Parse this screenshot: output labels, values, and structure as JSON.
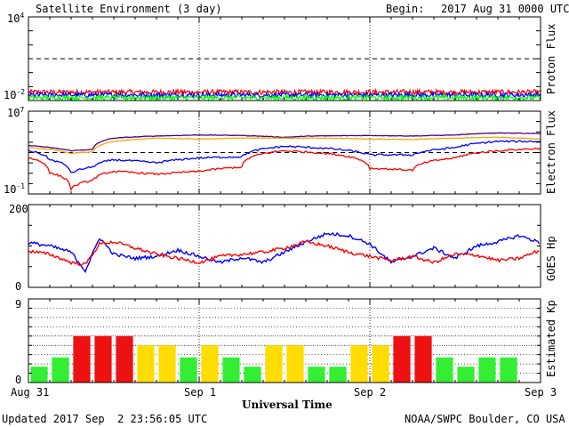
{
  "header": {
    "title": "Satellite Environment (3 day)",
    "begin_label": "Begin:",
    "begin_date": "2017 Aug 31 0000 UTC"
  },
  "footer": {
    "updated": "Updated 2017 Sep  2 23:56:05 UTC",
    "credit": "NOAA/SWPC Boulder, CO USA"
  },
  "x_axis": {
    "title": "Universal Time",
    "ticks": [
      "Aug 31",
      "Sep 1",
      "Sep 2",
      "Sep 3"
    ]
  },
  "colors": {
    "red": "#ff0000",
    "blue": "#0000ff",
    "green": "#00ff00",
    "purple": "#4b0082",
    "orange": "#ffa500",
    "kp_green": "#33ee33",
    "kp_yellow": "#ffdd00",
    "kp_red": "#ee1111"
  },
  "chart_data": [
    {
      "type": "line",
      "ylabel": "Proton Flux",
      "y_scale": "log",
      "ylim": [
        0.01,
        10000
      ],
      "y_ticks": [
        {
          "base": "10",
          "exp": "4"
        },
        {
          "base": "10",
          "exp": "-2"
        }
      ],
      "x_range_hours": [
        0,
        72
      ],
      "threshold": 10,
      "series": [
        {
          "color": "red",
          "level": 0.04
        },
        {
          "color": "blue",
          "level": 0.025
        },
        {
          "color": "green",
          "level": 0.016
        }
      ]
    },
    {
      "type": "line",
      "ylabel": "Electron Flux",
      "y_scale": "log",
      "ylim": [
        0.1,
        10000000
      ],
      "y_ticks": [
        {
          "base": "10",
          "exp": "7"
        },
        {
          "base": "10",
          "exp": "-1"
        }
      ],
      "x_range_hours": [
        0,
        72
      ],
      "threshold": 1000,
      "series": [
        {
          "color": "purple",
          "points": [
            [
              0,
              5000
            ],
            [
              3,
              3000
            ],
            [
              6,
              1500
            ],
            [
              9,
              2000
            ],
            [
              12,
              25000
            ],
            [
              18,
              40000
            ],
            [
              24,
              50000
            ],
            [
              30,
              45000
            ],
            [
              36,
              30000
            ],
            [
              40,
              40000
            ],
            [
              48,
              45000
            ],
            [
              54,
              40000
            ],
            [
              60,
              50000
            ],
            [
              66,
              80000
            ],
            [
              72,
              70000
            ]
          ]
        },
        {
          "color": "orange",
          "points": [
            [
              0,
              3000
            ],
            [
              3,
              2000
            ],
            [
              6,
              800
            ],
            [
              9,
              1200
            ],
            [
              12,
              12000
            ],
            [
              18,
              25000
            ],
            [
              24,
              20000
            ],
            [
              30,
              25000
            ],
            [
              36,
              25000
            ],
            [
              42,
              25000
            ],
            [
              48,
              20000
            ],
            [
              54,
              18000
            ],
            [
              60,
              25000
            ],
            [
              66,
              30000
            ],
            [
              72,
              20000
            ]
          ]
        },
        {
          "color": "blue",
          "points": [
            [
              0,
              1500
            ],
            [
              3,
              200
            ],
            [
              6,
              10
            ],
            [
              9,
              40
            ],
            [
              12,
              200
            ],
            [
              18,
              100
            ],
            [
              24,
              300
            ],
            [
              30,
              400
            ],
            [
              36,
              4000
            ],
            [
              42,
              2500
            ],
            [
              48,
              600
            ],
            [
              54,
              600
            ],
            [
              60,
              3000
            ],
            [
              66,
              12000
            ],
            [
              72,
              12000
            ]
          ]
        },
        {
          "color": "red",
          "points": [
            [
              0,
              300
            ],
            [
              3,
              10
            ],
            [
              6,
              0.3
            ],
            [
              9,
              2
            ],
            [
              12,
              15
            ],
            [
              18,
              8
            ],
            [
              24,
              15
            ],
            [
              30,
              40
            ],
            [
              36,
              1500
            ],
            [
              42,
              800
            ],
            [
              48,
              30
            ],
            [
              54,
              20
            ],
            [
              60,
              300
            ],
            [
              66,
              1500
            ],
            [
              72,
              2500
            ]
          ]
        }
      ]
    },
    {
      "type": "line",
      "ylabel": "GOES Hp",
      "ylim": [
        0,
        200
      ],
      "y_ticks": [
        "200",
        "0"
      ],
      "x_range_hours": [
        0,
        72
      ],
      "series": [
        {
          "color": "blue",
          "points": [
            [
              0,
              108
            ],
            [
              3,
              100
            ],
            [
              6,
              85
            ],
            [
              8,
              40
            ],
            [
              10,
              120
            ],
            [
              12,
              80
            ],
            [
              15,
              70
            ],
            [
              18,
              75
            ],
            [
              21,
              90
            ],
            [
              24,
              75
            ],
            [
              27,
              60
            ],
            [
              30,
              72
            ],
            [
              33,
              60
            ],
            [
              36,
              85
            ],
            [
              39,
              110
            ],
            [
              42,
              130
            ],
            [
              45,
              125
            ],
            [
              48,
              105
            ],
            [
              51,
              60
            ],
            [
              54,
              75
            ],
            [
              57,
              95
            ],
            [
              60,
              70
            ],
            [
              63,
              100
            ],
            [
              66,
              110
            ],
            [
              69,
              125
            ],
            [
              72,
              108
            ]
          ]
        },
        {
          "color": "red",
          "points": [
            [
              0,
              88
            ],
            [
              3,
              80
            ],
            [
              6,
              60
            ],
            [
              8,
              55
            ],
            [
              10,
              105
            ],
            [
              12,
              110
            ],
            [
              15,
              95
            ],
            [
              18,
              80
            ],
            [
              21,
              70
            ],
            [
              24,
              60
            ],
            [
              27,
              75
            ],
            [
              30,
              80
            ],
            [
              33,
              85
            ],
            [
              36,
              95
            ],
            [
              39,
              110
            ],
            [
              42,
              100
            ],
            [
              45,
              85
            ],
            [
              48,
              75
            ],
            [
              51,
              65
            ],
            [
              54,
              75
            ],
            [
              57,
              60
            ],
            [
              60,
              80
            ],
            [
              63,
              78
            ],
            [
              66,
              65
            ],
            [
              69,
              70
            ],
            [
              72,
              90
            ]
          ]
        }
      ]
    },
    {
      "type": "bar",
      "ylabel": "Estimated Kp",
      "ylim": [
        0,
        9
      ],
      "y_ticks": [
        "9",
        "0"
      ],
      "x_range_hours": [
        0,
        72
      ],
      "values": [
        1.7,
        2.7,
        5,
        5,
        5,
        4,
        4,
        2.7,
        4,
        2.7,
        1.7,
        4,
        4,
        1.7,
        1.7,
        4,
        4,
        5,
        5,
        2.7,
        1.7,
        2.7,
        2.7
      ],
      "color_rule": "green < 4 = yellow < 5 <= red"
    }
  ]
}
